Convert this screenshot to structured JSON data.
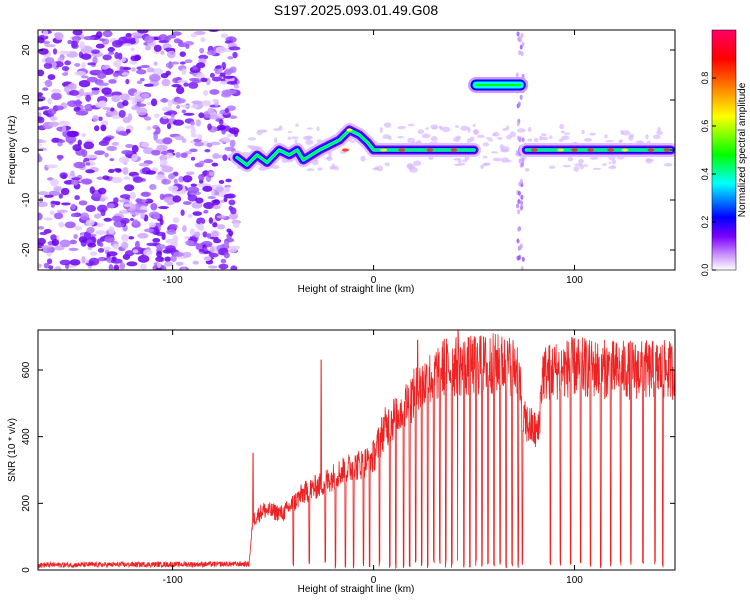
{
  "title": "S197.2025.093.01.49.G08",
  "chart_data": [
    {
      "type": "heatmap",
      "xlabel": "Height of straight line (km)",
      "ylabel": "Frequency (Hz)",
      "xlim": [
        -167,
        150
      ],
      "ylim": [
        -24,
        24
      ],
      "x_ticks": [
        -100,
        0,
        100
      ],
      "x_tick_labels": [
        "-100",
        "0",
        "100"
      ],
      "y_ticks": [
        -20,
        -10,
        0,
        10,
        20
      ],
      "y_tick_labels": [
        "-20",
        "-10",
        "0",
        "10",
        "20"
      ],
      "colorbar": {
        "label": "Normalized spectral amplitude",
        "range": [
          0,
          1
        ],
        "ticks": [
          0.0,
          0.2,
          0.4,
          0.6,
          0.8
        ],
        "tick_labels": [
          "0.0",
          "0.2",
          "0.4",
          "0.6",
          "0.8"
        ],
        "colormap": [
          "#ffffff",
          "#cc99ff",
          "#7a00ff",
          "#0000ff",
          "#00ffff",
          "#00ff00",
          "#ffff00",
          "#ff8000",
          "#ff0000",
          "#ff0066"
        ]
      },
      "noise_region_x": [
        -167,
        -68
      ],
      "ridge": [
        {
          "x": -68,
          "y": -1.5
        },
        {
          "x": -63,
          "y": -3
        },
        {
          "x": -58,
          "y": -1
        },
        {
          "x": -53,
          "y": -2.5
        },
        {
          "x": -47,
          "y": 0
        },
        {
          "x": -42,
          "y": -1
        },
        {
          "x": -38,
          "y": 0
        },
        {
          "x": -35,
          "y": -2
        },
        {
          "x": -31,
          "y": -1
        },
        {
          "x": -27,
          "y": 0
        },
        {
          "x": -22,
          "y": 1
        },
        {
          "x": -17,
          "y": 2
        },
        {
          "x": -12,
          "y": 4
        },
        {
          "x": -7,
          "y": 3
        },
        {
          "x": -3,
          "y": 1.5
        },
        {
          "x": 0,
          "y": 0
        },
        {
          "x": 10,
          "y": 0
        },
        {
          "x": 20,
          "y": 0
        },
        {
          "x": 30,
          "y": 0
        },
        {
          "x": 40,
          "y": 0
        },
        {
          "x": 50,
          "y": 0
        }
      ],
      "offset_segment": {
        "x": [
          50,
          74
        ],
        "y": 13
      },
      "flat_segment": {
        "x": [
          76,
          148
        ],
        "y": 0
      }
    },
    {
      "type": "line",
      "xlabel": "Height of straight line (km)",
      "ylabel": "SNR (10 * v/v)",
      "xlim": [
        -167,
        150
      ],
      "ylim": [
        0,
        720
      ],
      "x_ticks": [
        -100,
        0,
        100
      ],
      "x_tick_labels": [
        "-100",
        "0",
        "100"
      ],
      "y_ticks": [
        0,
        200,
        400,
        600
      ],
      "y_tick_labels": [
        "0",
        "200",
        "400",
        "600"
      ],
      "color": "#ee2222",
      "envelope": [
        {
          "x": -167,
          "y": 15
        },
        {
          "x": -62,
          "y": 18
        },
        {
          "x": -60,
          "y": 150
        },
        {
          "x": -55,
          "y": 180
        },
        {
          "x": -45,
          "y": 170
        },
        {
          "x": -35,
          "y": 230
        },
        {
          "x": -25,
          "y": 260
        },
        {
          "x": -15,
          "y": 300
        },
        {
          "x": -5,
          "y": 320
        },
        {
          "x": 0,
          "y": 340
        },
        {
          "x": 5,
          "y": 420
        },
        {
          "x": 15,
          "y": 490
        },
        {
          "x": 25,
          "y": 560
        },
        {
          "x": 35,
          "y": 610
        },
        {
          "x": 45,
          "y": 610
        },
        {
          "x": 60,
          "y": 620
        },
        {
          "x": 72,
          "y": 610
        },
        {
          "x": 74,
          "y": 450
        },
        {
          "x": 82,
          "y": 410
        },
        {
          "x": 84,
          "y": 590
        },
        {
          "x": 100,
          "y": 610
        },
        {
          "x": 120,
          "y": 600
        },
        {
          "x": 150,
          "y": 600
        }
      ],
      "spikes": [
        {
          "x": -60,
          "y": 350
        },
        {
          "x": -26,
          "y": 630
        },
        {
          "x": 22,
          "y": 690
        },
        {
          "x": 42,
          "y": 720
        },
        {
          "x": 53,
          "y": 700
        }
      ],
      "dropouts_x": [
        -40,
        -32,
        -24,
        -19,
        -14,
        -10,
        -5,
        -2,
        3,
        8,
        11,
        15,
        18,
        21,
        24,
        27,
        30,
        33,
        36,
        39,
        42,
        45,
        48,
        51,
        54,
        57,
        60,
        63,
        66,
        69,
        72,
        74,
        88,
        93,
        98,
        103,
        108,
        113,
        118,
        123,
        128,
        134,
        140,
        144
      ]
    }
  ]
}
